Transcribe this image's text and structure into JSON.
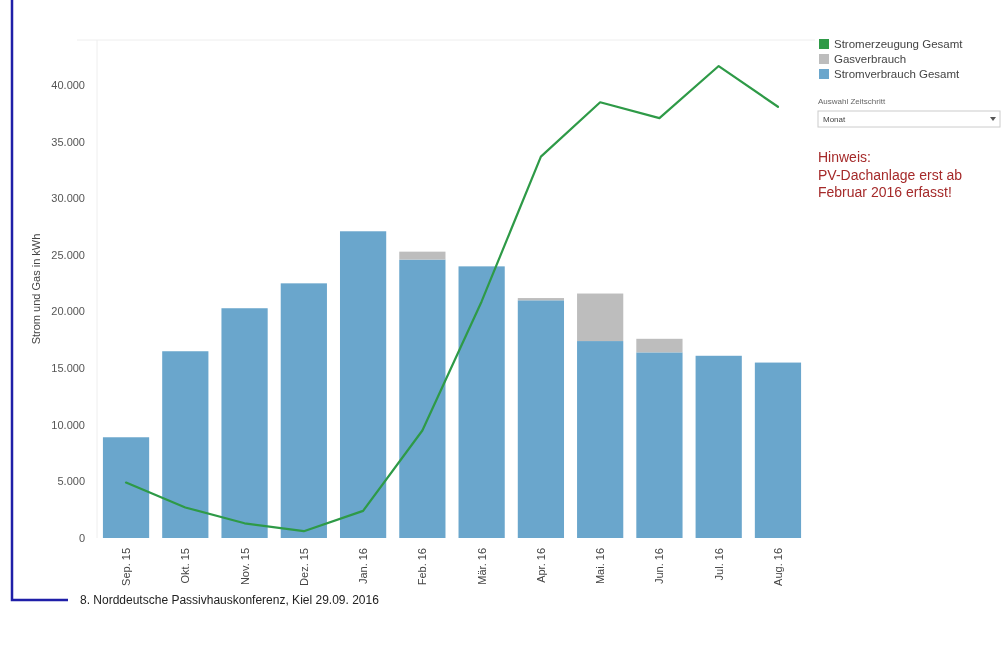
{
  "chart_data": {
    "type": "bar",
    "ylabel": "Strom und Gas in kWh",
    "stacked": true,
    "legend": "top right",
    "categories": [
      "Sep. 15",
      "Okt. 15",
      "Nov. 15",
      "Dez. 15",
      "Jan. 16",
      "Feb. 16",
      "Mär. 16",
      "Apr. 16",
      "Mai. 16",
      "Jun. 16",
      "Jul. 16",
      "Aug. 16"
    ],
    "series": [
      {
        "name": "Stromverbrauch Gesamt",
        "color": "#6aa6cc",
        "values": [
          8900,
          16500,
          20300,
          22500,
          27100,
          24600,
          24000,
          21000,
          17400,
          16400,
          16100,
          15500
        ]
      },
      {
        "name": "Gasverbrauch",
        "color": "#bdbdbd",
        "values": [
          null,
          null,
          null,
          null,
          null,
          700,
          null,
          200,
          4200,
          1200,
          null,
          null
        ]
      },
      {
        "name": "Stromerzeugung Gesamt",
        "type": "line",
        "color": "#2e9a47",
        "values": [
          4900,
          2700,
          1300,
          600,
          2400,
          9500,
          20900,
          33700,
          38500,
          37100,
          41700,
          38100
        ]
      }
    ],
    "ylim": [
      0,
      44000
    ],
    "yticks": [
      {
        "value": 0,
        "label": "0"
      },
      {
        "value": 5000,
        "label": "5.000"
      },
      {
        "value": 10000,
        "label": "10.000"
      },
      {
        "value": 15000,
        "label": "15.000"
      },
      {
        "value": 20000,
        "label": "20.000"
      },
      {
        "value": 25000,
        "label": "25.000"
      },
      {
        "value": 30000,
        "label": "30.000"
      },
      {
        "value": 35000,
        "label": "35.000"
      },
      {
        "value": 40000,
        "label": "40.000"
      }
    ],
    "annotations": [
      "Auswahl Zeitschritt",
      "Monat",
      "Hinweis:",
      "PV-Dachanlage erst ab Februar 2016 erfasst!",
      "8. Norddeutsche Passivhauskonferenz, Kiel 29.09. 2016"
    ]
  }
}
